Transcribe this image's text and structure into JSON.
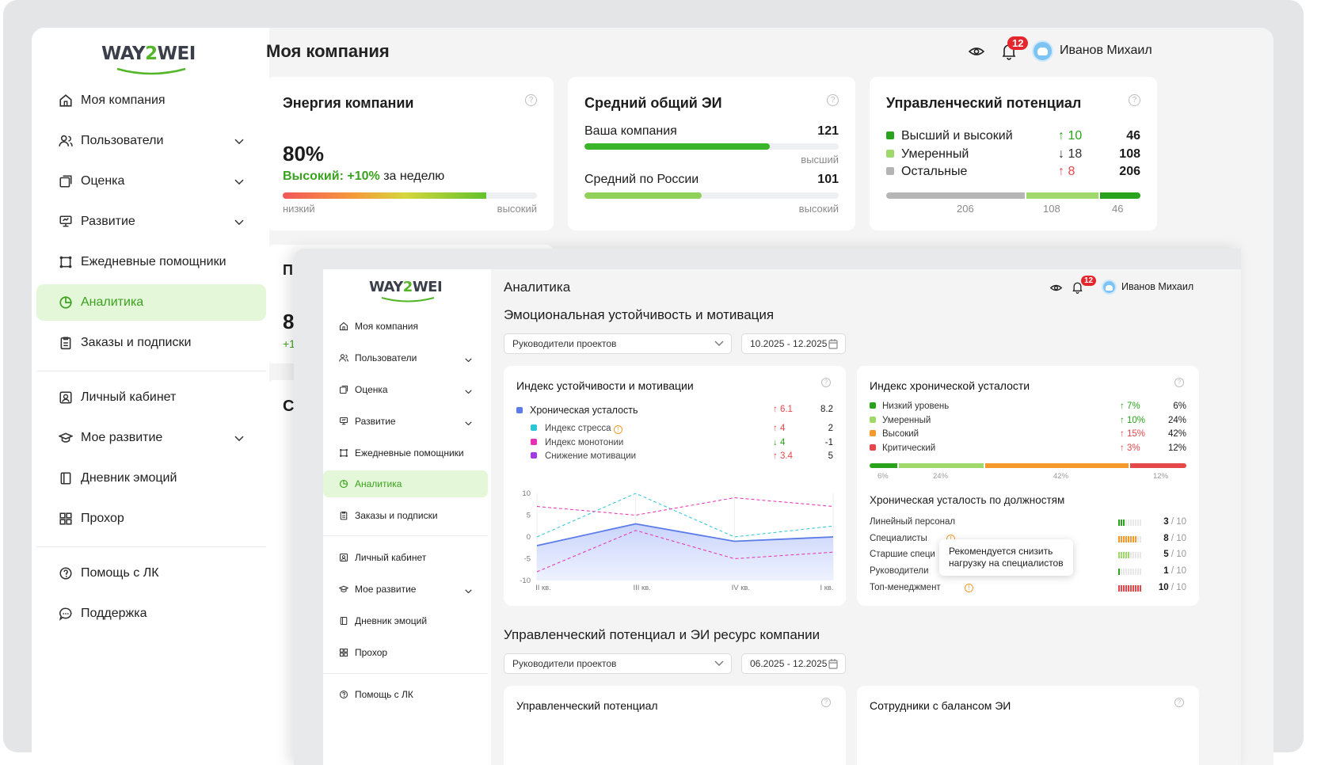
{
  "brand": {
    "logo_left": "WAY",
    "logo_two": "2",
    "logo_right": "WEI"
  },
  "colors": {
    "accent": "#52b628",
    "active_bg": "#e4f7d8",
    "badge": "#e5262c",
    "red": "#e5474b",
    "orange": "#f39a2b",
    "lime": "#9fd86b"
  },
  "back": {
    "page_title": "Моя компания",
    "header": {
      "badge": "12",
      "user": "Иванов Михаил"
    },
    "nav": [
      {
        "label": "Моя компания",
        "icon": "home-icon"
      },
      {
        "label": "Пользователи",
        "icon": "users-icon"
      },
      {
        "label": "Оценка",
        "icon": "assessment-icon"
      },
      {
        "label": "Развитие",
        "icon": "development-icon"
      },
      {
        "label": "Ежедневные помощники",
        "icon": "helpers-icon"
      },
      {
        "label": "Аналитика",
        "icon": "analytics-icon"
      },
      {
        "label": "Заказы и подписки",
        "icon": "orders-icon"
      },
      {
        "label": "Личный кабинет",
        "icon": "profile-icon"
      },
      {
        "label": "Мое развитие",
        "icon": "my-development-icon"
      },
      {
        "label": "Дневник эмоций",
        "icon": "diary-icon"
      },
      {
        "label": "Прохор",
        "icon": "grid-icon"
      },
      {
        "label": "Помощь с ЛК",
        "icon": "help-icon"
      },
      {
        "label": "Поддержка",
        "icon": "chat-icon"
      }
    ],
    "energy": {
      "title": "Энергия компании",
      "value": "80%",
      "level": "Высокий:",
      "delta": "+10%",
      "period": "за неделю",
      "low": "низкий",
      "high": "высокий",
      "fill": 0.8
    },
    "avg_ei": {
      "title": "Средний общий ЭИ",
      "row1_label": "Ваша компания",
      "row1_value": "121",
      "row1_tag": "высший",
      "row1_fill": 0.73,
      "row2_label": "Средний по России",
      "row2_value": "101",
      "row2_tag": "высокий",
      "row2_fill": 0.46
    },
    "potential": {
      "title": "Управленческий потенциал",
      "rows": [
        {
          "label": "Высший и высокий",
          "delta": "↑ 10",
          "value": "46",
          "color": "#2aa31c",
          "delta_color": "#2aa31c"
        },
        {
          "label": "Умеренный",
          "delta": "↓ 18",
          "value": "108",
          "color": "#9fd86b",
          "delta_color": "#333333"
        },
        {
          "label": "Остальные",
          "delta": "↑ 8",
          "value": "206",
          "color": "#b5b5b5",
          "delta_color": "#e5474b"
        }
      ],
      "axis": [
        "206",
        "108",
        "46"
      ]
    },
    "peek": {
      "p": "П",
      "eight": "8",
      "plus": "+1",
      "c": "С"
    }
  },
  "front": {
    "page_title": "Аналитика",
    "header": {
      "badge": "12",
      "user": "Иванов Михаил"
    },
    "nav": [
      {
        "label": "Моя компания",
        "icon": "home-icon"
      },
      {
        "label": "Пользователи",
        "icon": "users-icon"
      },
      {
        "label": "Оценка",
        "icon": "assessment-icon"
      },
      {
        "label": "Развитие",
        "icon": "development-icon"
      },
      {
        "label": "Ежедневные помощники",
        "icon": "helpers-icon"
      },
      {
        "label": "Аналитика",
        "icon": "analytics-icon"
      },
      {
        "label": "Заказы и подписки",
        "icon": "orders-icon"
      },
      {
        "label": "Личный кабинет",
        "icon": "profile-icon"
      },
      {
        "label": "Мое развитие",
        "icon": "my-development-icon"
      },
      {
        "label": "Дневник эмоций",
        "icon": "diary-icon"
      },
      {
        "label": "Прохор",
        "icon": "grid-icon"
      },
      {
        "label": "Помощь с ЛК",
        "icon": "help-icon"
      }
    ],
    "section1": {
      "title": "Эмоциональная устойчивость и мотивация",
      "select": "Руководители проектов",
      "date": "10.2025 - 12.2025"
    },
    "section2": {
      "title": "Управленческий потенциал и ЭИ ресурс компании",
      "select": "Руководители проектов",
      "date": "06.2025 - 12.2025"
    },
    "stability": {
      "title": "Индекс устойчивости и мотивации",
      "main": {
        "label": "Хроническая усталость",
        "delta": "↑ 6.1",
        "value": "8.2"
      },
      "subs": [
        {
          "label": "Индекс стресса",
          "delta": "↑ 4",
          "value": "2",
          "color": "#2ec5d6",
          "delta_color": "#e5474b"
        },
        {
          "label": "Индекс монотонии",
          "delta": "↓ 4",
          "value": "-1",
          "color": "#e62fb4",
          "delta_color": "#2aa31c"
        },
        {
          "label": "Снижение мотивации",
          "delta": "↑ 3.4",
          "value": "5",
          "color": "#a23be0",
          "delta_color": "#e5474b"
        }
      ]
    },
    "chart_data": {
      "type": "line",
      "categories": [
        "II кв.",
        "III кв.",
        "IV кв.",
        "I кв."
      ],
      "yticks": [
        "10",
        "5",
        "0",
        "-5",
        "-10"
      ],
      "ylim": [
        -10,
        10
      ],
      "series": [
        {
          "name": "Хроническая усталость",
          "values": [
            -2,
            3,
            -1,
            0
          ],
          "color": "#5b7be8"
        },
        {
          "name": "Индекс стресса",
          "values": [
            0,
            10,
            0,
            2.5
          ],
          "color": "#2ec5d6"
        },
        {
          "name": "Индекс монотонии",
          "values": [
            7,
            5,
            9,
            7
          ],
          "color": "#e62fb4"
        },
        {
          "name": "Снижение мотивации",
          "values": [
            -8,
            1.5,
            -5,
            -3.5
          ],
          "color": "#e62fb4"
        }
      ]
    },
    "chronic": {
      "title": "Индекс хронической усталости",
      "rows": [
        {
          "label": "Низкий уровень",
          "delta": "↑ 7%",
          "value": "6%",
          "color": "#2aa31c",
          "delta_color": "#2aa31c"
        },
        {
          "label": "Умеренный",
          "delta": "↑ 10%",
          "value": "24%",
          "color": "#9fd86b",
          "delta_color": "#2aa31c"
        },
        {
          "label": "Высокий",
          "delta": "↑ 15%",
          "value": "42%",
          "color": "#f39a2b",
          "delta_color": "#e5474b"
        },
        {
          "label": "Критический",
          "delta": "↑ 3%",
          "value": "12%",
          "color": "#e5474b",
          "delta_color": "#e5474b"
        }
      ],
      "axis": [
        "6%",
        "24%",
        "42%",
        "12%"
      ]
    },
    "positions": {
      "title": "Хроническая усталость по должностям",
      "rows": [
        {
          "label": "Линейный персонал",
          "score": "3",
          "of": "/ 10",
          "level": 3,
          "color": "#2aa31c",
          "warn": false
        },
        {
          "label": "Специалисты",
          "score": "8",
          "of": "/ 10",
          "level": 8,
          "color": "#f39a2b",
          "warn": true
        },
        {
          "label": "Старшие специ",
          "score": "5",
          "of": "/ 10",
          "level": 5,
          "color": "#9fd86b",
          "warn": false
        },
        {
          "label": "Руководители",
          "score": "1",
          "of": "/ 10",
          "level": 1,
          "color": "#2aa31c",
          "warn": false
        },
        {
          "label": "Топ-менеджмент",
          "score": "10",
          "of": "/ 10",
          "level": 10,
          "color": "#e5474b",
          "warn": true
        }
      ],
      "tooltip_l1": "Рекомендуется снизить",
      "tooltip_l2": "нагрузку на специалистов"
    },
    "bottom_cards": {
      "left": "Управленческий потенциал",
      "right": "Сотрудники с балансом ЭИ"
    }
  }
}
